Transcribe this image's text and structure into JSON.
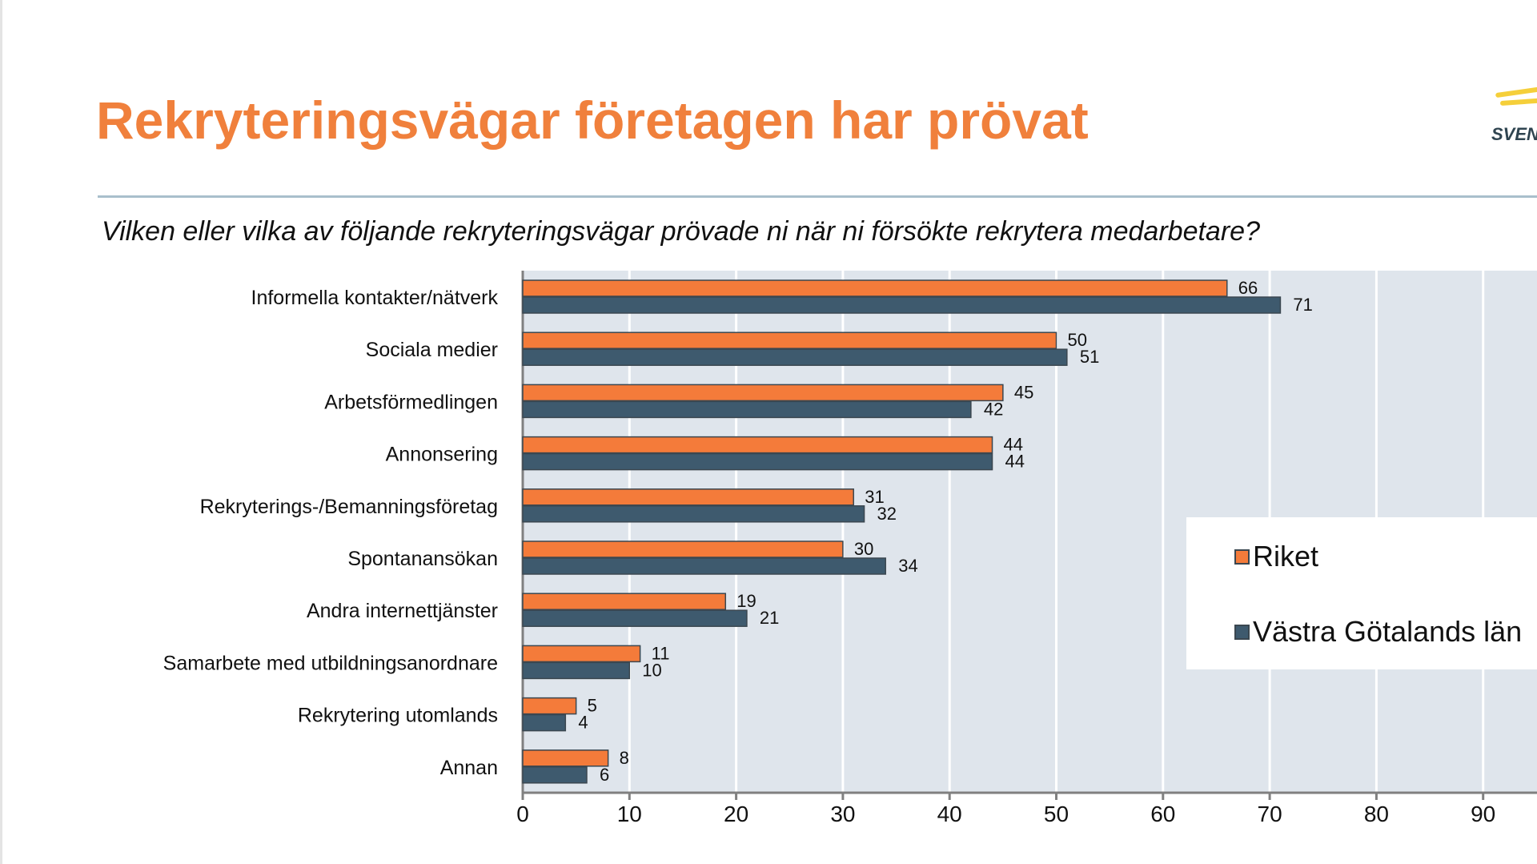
{
  "title": "Rekryteringsvägar företagen har prövat",
  "question": "Vilken eller vilka av följande rekryteringsvägar prövade ni när ni försökte rekrytera medarbetare?",
  "logo_text": "SVEN",
  "chart_data": {
    "type": "bar",
    "orientation": "horizontal",
    "title": "Vilken eller vilka av följande rekryteringsvägar prövade ni när ni försökte rekrytera medarbetare?",
    "categories": [
      "Informella kontakter/nätverk",
      "Sociala medier",
      "Arbetsförmedlingen",
      "Annonsering",
      "Rekryterings-/Bemanningsföretag",
      "Spontanansökan",
      "Andra internettjänster",
      "Samarbete med utbildningsanordnare",
      "Rekrytering utomlands",
      "Annan"
    ],
    "series": [
      {
        "name": "Riket",
        "color": "#f47b3a",
        "values": [
          66,
          50,
          45,
          44,
          31,
          30,
          19,
          11,
          5,
          8
        ]
      },
      {
        "name": "Västra Götalands län",
        "color": "#3e5a6e",
        "values": [
          71,
          51,
          42,
          44,
          32,
          34,
          21,
          10,
          4,
          6
        ]
      }
    ],
    "xlim": [
      0,
      100
    ],
    "xticks": [
      0,
      10,
      20,
      30,
      40,
      50,
      60,
      70,
      80,
      90
    ],
    "grid": true,
    "plot_background": "#dfe5ec",
    "legend_position": "right"
  }
}
